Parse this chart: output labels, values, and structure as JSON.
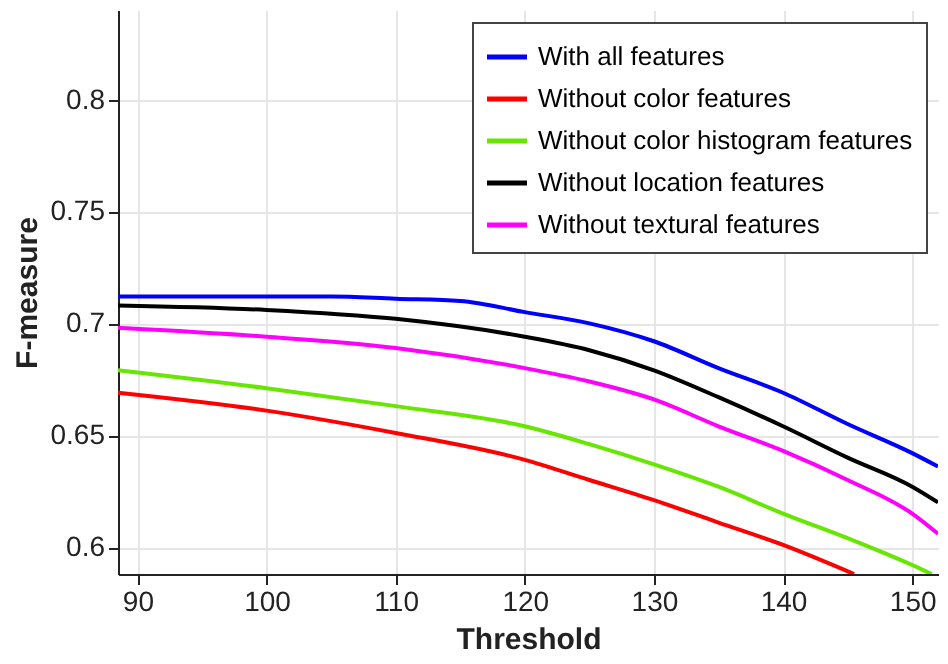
{
  "chart_data": {
    "type": "line",
    "xlabel": "Threshold",
    "ylabel": "F-measure",
    "xlim": [
      88.5,
      152
    ],
    "ylim": [
      0.588,
      0.84
    ],
    "xticks": [
      90,
      100,
      110,
      120,
      130,
      140,
      150
    ],
    "yticks": [
      0.6,
      0.65,
      0.7,
      0.75,
      0.8
    ],
    "grid": true,
    "legend": "top right",
    "line_style": "solid",
    "series": [
      {
        "name": "With all features",
        "color": "#0000ff",
        "x": [
          88.5,
          100,
          105,
          110,
          115,
          120,
          125,
          130,
          135,
          140,
          145,
          150,
          152
        ],
        "values": [
          0.712,
          0.712,
          0.712,
          0.711,
          0.71,
          0.705,
          0.7,
          0.692,
          0.68,
          0.669,
          0.655,
          0.642,
          0.636
        ]
      },
      {
        "name": "Without color features",
        "color": "#ff0000",
        "x": [
          88.5,
          100,
          110,
          120,
          125,
          130,
          135,
          140,
          145.5
        ],
        "values": [
          0.669,
          0.661,
          0.651,
          0.639,
          0.63,
          0.621,
          0.611,
          0.601,
          0.588
        ]
      },
      {
        "name": "Without color histogram features",
        "color": "#66e600",
        "x": [
          88.5,
          100,
          110,
          120,
          125,
          130,
          135,
          140,
          145,
          150,
          151.5
        ],
        "values": [
          0.679,
          0.671,
          0.663,
          0.654,
          0.646,
          0.637,
          0.627,
          0.615,
          0.604,
          0.592,
          0.588
        ]
      },
      {
        "name": "Without location features",
        "color": "#000000",
        "x": [
          88.5,
          100,
          110,
          120,
          125,
          130,
          135,
          140,
          145,
          150,
          152
        ],
        "values": [
          0.708,
          0.706,
          0.702,
          0.694,
          0.688,
          0.679,
          0.667,
          0.654,
          0.64,
          0.627,
          0.62
        ]
      },
      {
        "name": "Without textural features",
        "color": "#ff00ff",
        "x": [
          88.5,
          100,
          110,
          120,
          125,
          130,
          135,
          140,
          145,
          150,
          152
        ],
        "values": [
          0.698,
          0.694,
          0.689,
          0.68,
          0.674,
          0.666,
          0.654,
          0.643,
          0.63,
          0.615,
          0.606
        ]
      }
    ]
  }
}
